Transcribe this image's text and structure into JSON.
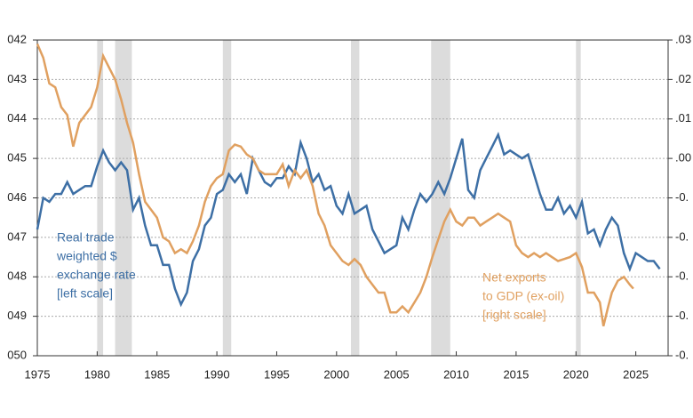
{
  "chart_data": {
    "type": "line",
    "xlim": [
      1975,
      2027.7
    ],
    "xticks": [
      1975,
      1980,
      1985,
      1990,
      1995,
      2000,
      2005,
      2010,
      2015,
      2020,
      2025
    ],
    "ylim": [
      50,
      42
    ],
    "yticks": [
      {
        "value": 42,
        "label": "042"
      },
      {
        "value": 43,
        "label": "043"
      },
      {
        "value": 44,
        "label": "044"
      },
      {
        "value": 45,
        "label": "045"
      },
      {
        "value": 46,
        "label": "046"
      },
      {
        "value": 47,
        "label": "047"
      },
      {
        "value": 48,
        "label": "048"
      },
      {
        "value": 49,
        "label": "049"
      },
      {
        "value": 50,
        "label": "050"
      }
    ],
    "y2lim": [
      -0.05,
      0.03
    ],
    "y2ticks": [
      {
        "value": 0.03,
        "label": ".03"
      },
      {
        "value": 0.02,
        "label": ".02"
      },
      {
        "value": 0.01,
        "label": ".01"
      },
      {
        "value": 0,
        "label": ".00"
      },
      {
        "value": -0.01,
        "label": "-0."
      },
      {
        "value": -0.02,
        "label": "-0."
      },
      {
        "value": -0.03,
        "label": "-0."
      },
      {
        "value": -0.04,
        "label": "-0."
      },
      {
        "value": -0.05,
        "label": "-0."
      }
    ],
    "grid": true,
    "recession_color": "#dcdcdc",
    "recessions": [
      [
        1980.0,
        1980.5
      ],
      [
        1981.5,
        1982.9
      ],
      [
        1990.5,
        1991.2
      ],
      [
        2001.2,
        2001.9
      ],
      [
        2007.9,
        2009.5
      ],
      [
        2020.0,
        2020.4
      ]
    ],
    "series": [
      {
        "name": [
          "Real trade",
          "weighted $",
          "exchange rate",
          "[left scale]"
        ],
        "color": "#3d6fa5",
        "axis": "y",
        "x": [
          1975.0,
          1975.5,
          1976.0,
          1976.5,
          1977.0,
          1977.5,
          1978.0,
          1978.5,
          1979.0,
          1979.5,
          1980.0,
          1980.5,
          1981.0,
          1981.5,
          1982.0,
          1982.5,
          1983.0,
          1983.5,
          1984.0,
          1984.5,
          1985.0,
          1985.5,
          1986.0,
          1986.5,
          1987.0,
          1987.5,
          1988.0,
          1988.5,
          1989.0,
          1989.5,
          1990.0,
          1990.5,
          1991.0,
          1991.5,
          1992.0,
          1992.5,
          1993.0,
          1993.5,
          1994.0,
          1994.5,
          1995.0,
          1995.5,
          1996.0,
          1996.5,
          1997.0,
          1997.5,
          1998.0,
          1998.5,
          1999.0,
          1999.5,
          2000.0,
          2000.5,
          2001.0,
          2001.5,
          2002.0,
          2002.5,
          2003.0,
          2003.5,
          2004.0,
          2004.5,
          2005.0,
          2005.5,
          2006.0,
          2006.5,
          2007.0,
          2007.5,
          2008.0,
          2008.5,
          2009.0,
          2009.5,
          2010.0,
          2010.5,
          2011.0,
          2011.5,
          2012.0,
          2012.5,
          2013.0,
          2013.5,
          2014.0,
          2014.5,
          2015.0,
          2015.5,
          2016.0,
          2016.5,
          2017.0,
          2017.5,
          2018.0,
          2018.5,
          2019.0,
          2019.5,
          2020.0,
          2020.5,
          2021.0,
          2021.5,
          2022.0,
          2022.5,
          2023.0,
          2023.5,
          2024.0,
          2024.5,
          2025.0,
          2025.5,
          2026.0,
          2026.5,
          2027.0
        ],
        "values": [
          46.8,
          46.0,
          46.1,
          45.9,
          45.9,
          45.6,
          45.9,
          45.8,
          45.7,
          45.7,
          45.2,
          44.8,
          45.1,
          45.3,
          45.1,
          45.3,
          46.3,
          46.0,
          46.7,
          47.2,
          47.2,
          47.7,
          47.7,
          48.3,
          48.7,
          48.4,
          47.6,
          47.3,
          46.7,
          46.5,
          45.9,
          45.8,
          45.4,
          45.6,
          45.4,
          45.9,
          45.0,
          45.3,
          45.6,
          45.7,
          45.5,
          45.5,
          45.2,
          45.4,
          44.6,
          45.0,
          45.6,
          45.4,
          45.8,
          45.7,
          46.2,
          46.4,
          45.9,
          46.4,
          46.3,
          46.2,
          46.8,
          47.1,
          47.4,
          47.3,
          47.2,
          46.5,
          46.8,
          46.3,
          45.9,
          46.1,
          45.9,
          45.6,
          45.9,
          45.5,
          45.0,
          44.5,
          45.8,
          46.0,
          45.3,
          45.0,
          44.7,
          44.4,
          44.9,
          44.8,
          44.9,
          45.0,
          44.9,
          45.4,
          45.9,
          46.3,
          46.3,
          46.0,
          46.4,
          46.2,
          46.5,
          46.1,
          46.9,
          46.8,
          47.2,
          46.8,
          46.5,
          46.7,
          47.4,
          47.8,
          47.4,
          47.5,
          47.6,
          47.6,
          47.8
        ]
      },
      {
        "name": [
          "Net exports",
          "to GDP (ex-oil)",
          "[right scale]"
        ],
        "color": "#e0a060",
        "axis": "y2",
        "x": [
          1975.0,
          1975.5,
          1976.0,
          1976.5,
          1977.0,
          1977.5,
          1978.0,
          1978.5,
          1979.0,
          1979.5,
          1980.0,
          1980.5,
          1981.0,
          1981.5,
          1982.0,
          1982.5,
          1983.0,
          1983.5,
          1984.0,
          1984.5,
          1985.0,
          1985.5,
          1986.0,
          1986.5,
          1987.0,
          1987.5,
          1988.0,
          1988.5,
          1989.0,
          1989.5,
          1990.0,
          1990.5,
          1991.0,
          1991.5,
          1992.0,
          1992.5,
          1993.0,
          1993.5,
          1994.0,
          1994.5,
          1995.0,
          1995.5,
          1996.0,
          1996.5,
          1997.0,
          1997.5,
          1998.0,
          1998.5,
          1999.0,
          1999.5,
          2000.0,
          2000.5,
          2001.0,
          2001.5,
          2002.0,
          2002.5,
          2003.0,
          2003.5,
          2004.0,
          2004.5,
          2005.0,
          2005.5,
          2006.0,
          2006.5,
          2007.0,
          2007.5,
          2008.0,
          2008.5,
          2009.0,
          2009.5,
          2010.0,
          2010.5,
          2011.0,
          2011.5,
          2012.0,
          2012.5,
          2013.0,
          2013.5,
          2014.0,
          2014.5,
          2015.0,
          2015.5,
          2016.0,
          2016.5,
          2017.0,
          2017.5,
          2018.0,
          2018.5,
          2019.0,
          2019.5,
          2020.0,
          2020.5,
          2021.0,
          2021.5,
          2022.0,
          2022.3,
          2022.7,
          2023.0,
          2023.5,
          2024.0,
          2024.5,
          2024.8
        ],
        "values": [
          0.029,
          0.0255,
          0.019,
          0.018,
          0.013,
          0.011,
          0.003,
          0.009,
          0.011,
          0.013,
          0.018,
          0.026,
          0.023,
          0.02,
          0.015,
          0.009,
          0.004,
          -0.004,
          -0.011,
          -0.013,
          -0.015,
          -0.02,
          -0.021,
          -0.024,
          -0.023,
          -0.024,
          -0.021,
          -0.017,
          -0.011,
          -0.007,
          -0.005,
          -0.004,
          0.002,
          0.0035,
          0.003,
          0.001,
          0,
          -0.003,
          -0.004,
          -0.004,
          -0.004,
          -0.0015,
          -0.007,
          -0.003,
          -0.005,
          -0.003,
          -0.007,
          -0.014,
          -0.017,
          -0.022,
          -0.024,
          -0.026,
          -0.027,
          -0.0255,
          -0.027,
          -0.03,
          -0.032,
          -0.034,
          -0.034,
          -0.039,
          -0.039,
          -0.0375,
          -0.039,
          -0.0365,
          -0.034,
          -0.03,
          -0.025,
          -0.0205,
          -0.016,
          -0.013,
          -0.016,
          -0.017,
          -0.015,
          -0.015,
          -0.017,
          -0.016,
          -0.015,
          -0.014,
          -0.015,
          -0.016,
          -0.022,
          -0.024,
          -0.025,
          -0.024,
          -0.025,
          -0.024,
          -0.025,
          -0.026,
          -0.0255,
          -0.025,
          -0.024,
          -0.0275,
          -0.034,
          -0.034,
          -0.0365,
          -0.0425,
          -0.0375,
          -0.034,
          -0.031,
          -0.03,
          -0.032,
          -0.033
        ]
      }
    ]
  }
}
